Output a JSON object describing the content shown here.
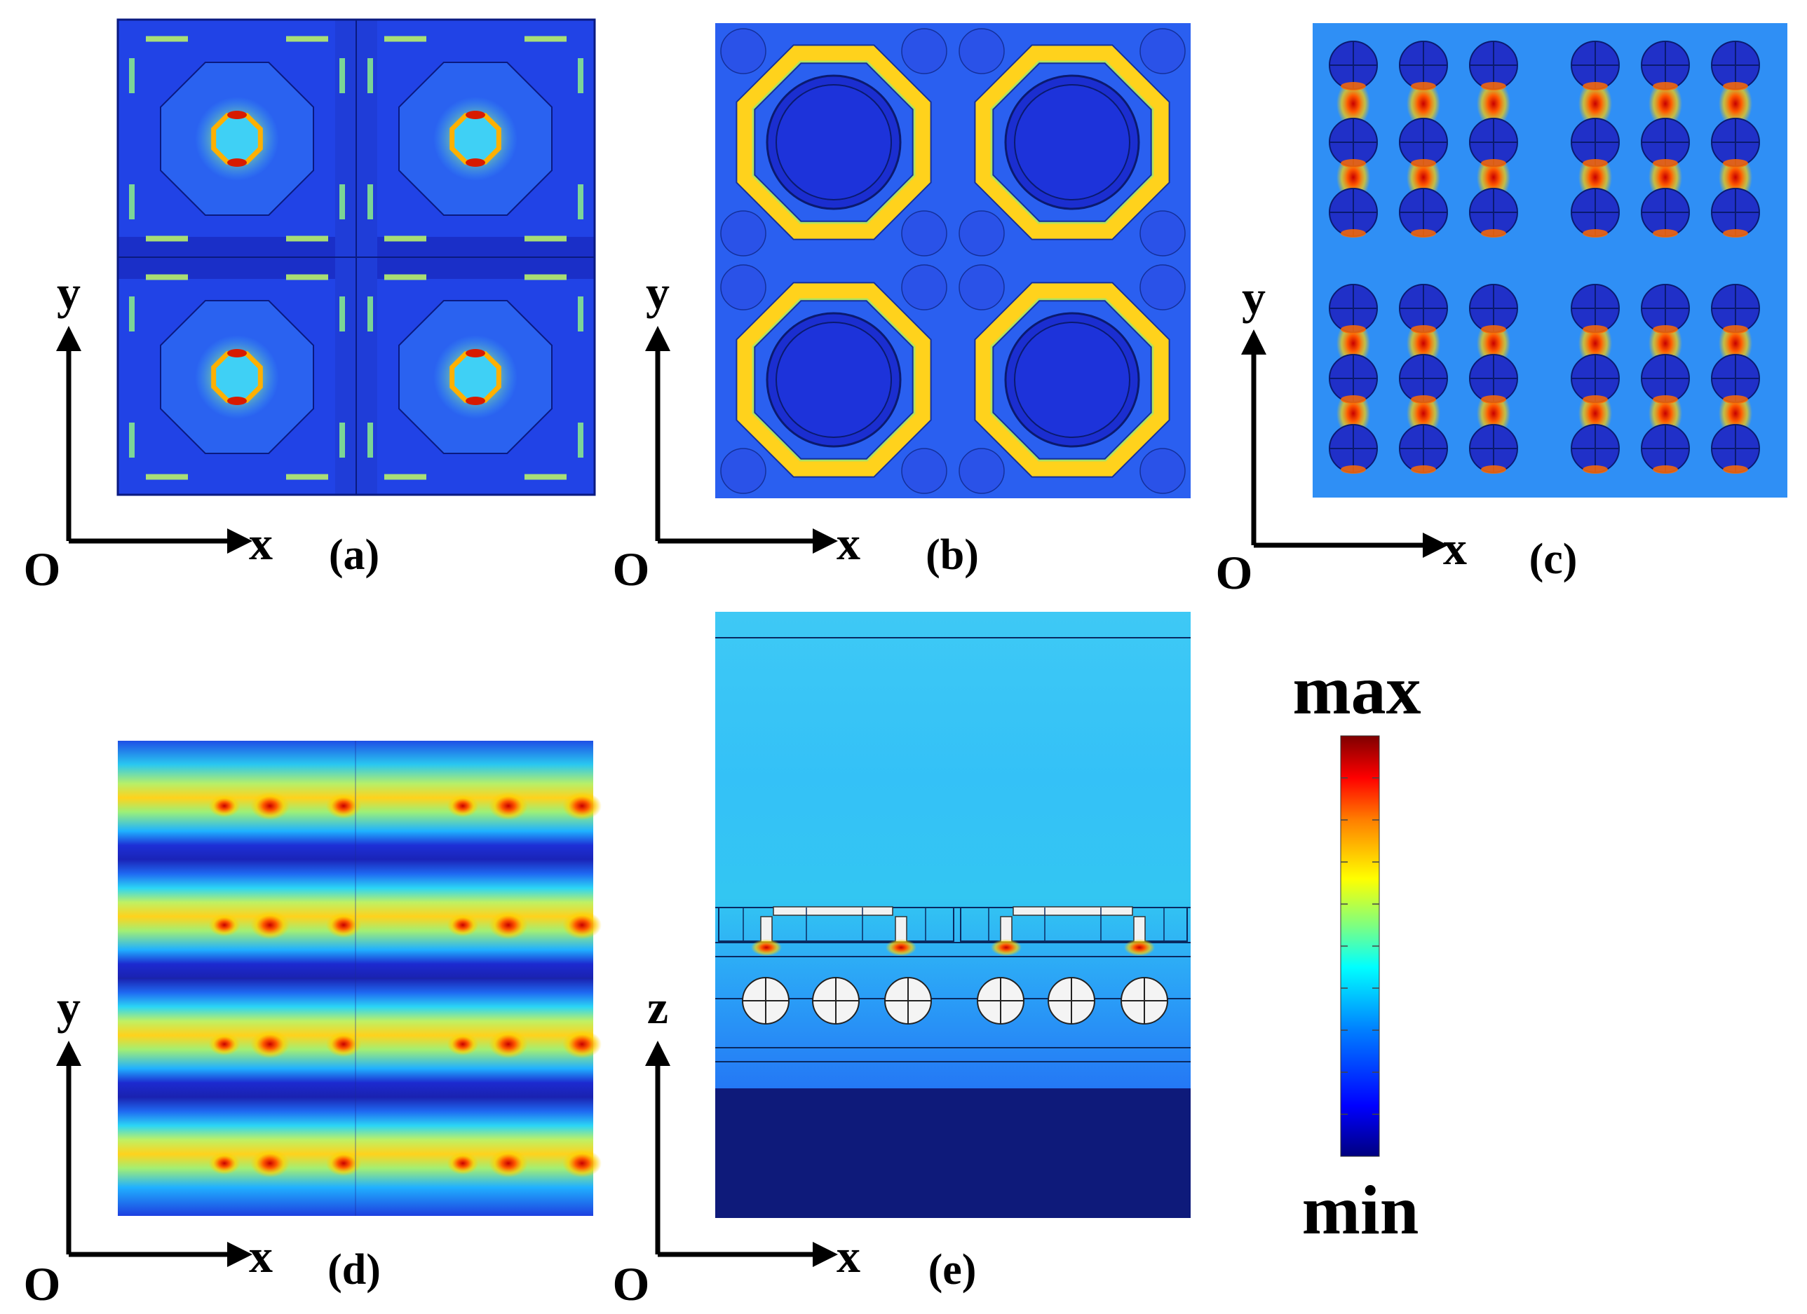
{
  "panels": [
    {
      "id": "a",
      "label": "(a)",
      "axis_vertical": "y",
      "axis_horizontal": "x",
      "origin": "O"
    },
    {
      "id": "b",
      "label": "(b)",
      "axis_vertical": "y",
      "axis_horizontal": "x",
      "origin": "O"
    },
    {
      "id": "c",
      "label": "(c)",
      "axis_vertical": "y",
      "axis_horizontal": "x",
      "origin": "O"
    },
    {
      "id": "d",
      "label": "(d)",
      "axis_vertical": "y",
      "axis_horizontal": "x",
      "origin": "O"
    },
    {
      "id": "e",
      "label": "(e)",
      "axis_vertical": "z",
      "axis_horizontal": "x",
      "origin": "O"
    }
  ],
  "colorbar": {
    "max_label": "max",
    "min_label": "min",
    "colormap": "jet",
    "colors": [
      "#00007f",
      "#0000ff",
      "#007fff",
      "#00ffff",
      "#7fff7f",
      "#ffff00",
      "#ff7f00",
      "#ff0000",
      "#7f0000"
    ]
  }
}
